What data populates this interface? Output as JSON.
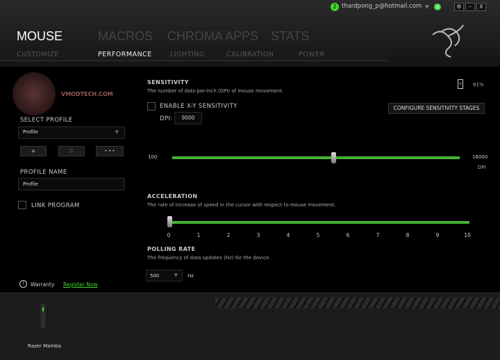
{
  "account": {
    "notification_count": "2",
    "email": "thardpong_p@hotmail.com"
  },
  "window_controls": {
    "settings": "⚙",
    "minimize": "–",
    "close": "X"
  },
  "main_tabs": [
    "MOUSE",
    "MACROS",
    "CHROMA APPS",
    "STATS"
  ],
  "sub_tabs": [
    "CUSTOMIZE",
    "PERFORMANCE",
    "LIGHTING",
    "CALIBRATION",
    "POWER"
  ],
  "left": {
    "watermark": "VMODTECH.COM",
    "select_profile": "SELECT PROFILE",
    "profile_value": "Profile",
    "add": "+",
    "delete": "🗑",
    "more": "• • •",
    "profile_name_label": "PROFILE NAME",
    "profile_name_value": "Profile",
    "link_program": "LINK PROGRAM",
    "warranty": "Warranty",
    "register": "Register Now"
  },
  "sensitivity": {
    "title": "SENSITIVITY",
    "desc": "The number of dots-per-inch (DPI) of mouse movement.",
    "battery": "61%",
    "battery_level": 61,
    "enable_xy": "ENABLE X-Y SENSITIVITY",
    "dpi_label": "DPI:",
    "dpi_value": "9000",
    "configure": "CONFIGURE SENSITIVITY STAGES",
    "min": "100",
    "max": "16000",
    "unit": "DPI",
    "value": 9000
  },
  "acceleration": {
    "title": "ACCELERATION",
    "desc": "The rate of increase of speed in the cursor with respect to mouse movement.",
    "ticks": [
      "0",
      "1",
      "2",
      "3",
      "4",
      "5",
      "6",
      "7",
      "8",
      "9",
      "10"
    ],
    "value": 0
  },
  "polling": {
    "title": "POLLING RATE",
    "desc": "The frequency of data updates (Hz) for the device.",
    "value": "500",
    "unit": "Hz"
  },
  "device": {
    "name": "Razer Mamba"
  },
  "colors": {
    "accent": "#44b233",
    "link": "#44d62c"
  }
}
